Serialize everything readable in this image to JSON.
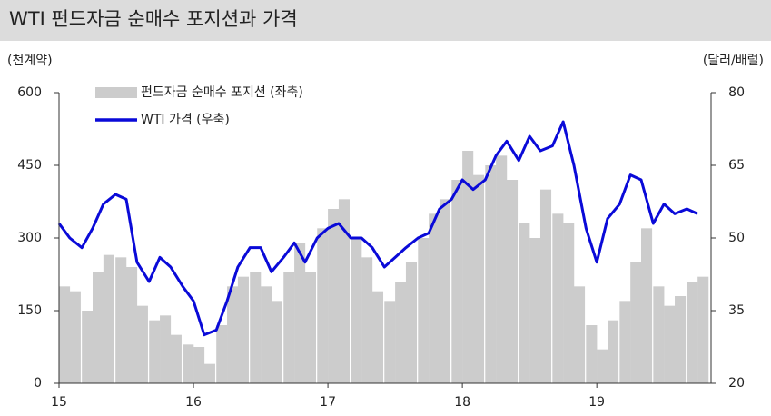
{
  "chart_data": {
    "type": "bar-line",
    "title": "WTI 펀드자금 순매수 포지션과 가격",
    "y_label": "(천계약)",
    "y2_label": "(달러/배럴)",
    "x": [
      15,
      15.08,
      15.17,
      15.25,
      15.33,
      15.42,
      15.5,
      15.58,
      15.67,
      15.75,
      15.83,
      15.92,
      16,
      16.08,
      16.17,
      16.25,
      16.33,
      16.42,
      16.5,
      16.58,
      16.67,
      16.75,
      16.83,
      16.92,
      17,
      17.08,
      17.17,
      17.25,
      17.33,
      17.42,
      17.5,
      17.58,
      17.67,
      17.75,
      17.83,
      17.92,
      18,
      18.08,
      18.17,
      18.25,
      18.33,
      18.42,
      18.5,
      18.58,
      18.67,
      18.75,
      18.83,
      18.92,
      19,
      19.08,
      19.17,
      19.25,
      19.33,
      19.42,
      19.5,
      19.58,
      19.67,
      19.75
    ],
    "series": [
      {
        "name": "펀드자금 순매수 포지션 (좌축)",
        "color": "#cccccc",
        "kind": "bar",
        "values": [
          200,
          190,
          150,
          230,
          265,
          260,
          240,
          160,
          130,
          140,
          100,
          80,
          75,
          40,
          120,
          200,
          220,
          230,
          200,
          170,
          230,
          290,
          230,
          320,
          360,
          380,
          300,
          260,
          190,
          170,
          210,
          250,
          300,
          350,
          380,
          420,
          480,
          430,
          450,
          470,
          420,
          330,
          300,
          400,
          350,
          330,
          200,
          120,
          70,
          130,
          170,
          250,
          320,
          200,
          160,
          180,
          210,
          220
        ]
      },
      {
        "name": "WTI 가격 (우축)",
        "color": "#0a0ad8",
        "kind": "line",
        "axis": "y2",
        "values": [
          53,
          50,
          48,
          52,
          57,
          59,
          58,
          45,
          41,
          46,
          44,
          40,
          37,
          30,
          31,
          37,
          44,
          48,
          48,
          43,
          46,
          49,
          45,
          50,
          52,
          53,
          50,
          50,
          48,
          44,
          46,
          48,
          50,
          51,
          56,
          58,
          62,
          60,
          62,
          67,
          70,
          66,
          71,
          68,
          69,
          74,
          65,
          52,
          45,
          54,
          57,
          63,
          62,
          53,
          57,
          55,
          56,
          55
        ]
      }
    ],
    "xlim": [
      15,
      19.85
    ],
    "xticks": [
      15,
      16,
      17,
      18,
      19
    ],
    "ylim": [
      0,
      600
    ],
    "yticks": [
      0,
      150,
      300,
      450,
      600
    ],
    "y2lim": [
      20,
      80
    ],
    "y2ticks": [
      20,
      35,
      50,
      65,
      80
    ],
    "legend": "upper left",
    "grid": false
  }
}
